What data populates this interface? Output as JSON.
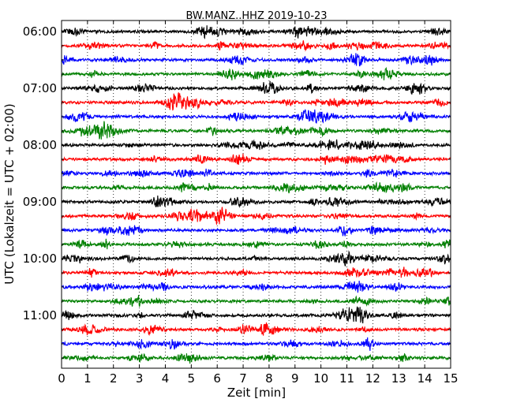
{
  "chart_data": {
    "type": "line",
    "title": "BW.MANZ..HHZ 2019-10-23",
    "xlabel": "Zeit  [min]",
    "ylabel": "UTC (Lokalzeit = UTC + 02:00)",
    "xlim": [
      0,
      15
    ],
    "x_ticks": [
      "0",
      "1",
      "2",
      "3",
      "4",
      "5",
      "6",
      "7",
      "8",
      "9",
      "10",
      "11",
      "12",
      "13",
      "14",
      "15"
    ],
    "y_tick_labels": [
      "06:00",
      "07:00",
      "08:00",
      "09:00",
      "10:00",
      "11:00"
    ],
    "grid": "vertical dotted",
    "colors": [
      "#000000",
      "#ff0000",
      "#0000ff",
      "#008000"
    ],
    "traces": [
      {
        "start": "06:00",
        "color": "#000000"
      },
      {
        "start": "06:15",
        "color": "#ff0000"
      },
      {
        "start": "06:30",
        "color": "#0000ff"
      },
      {
        "start": "06:45",
        "color": "#008000"
      },
      {
        "start": "07:00",
        "color": "#000000"
      },
      {
        "start": "07:15",
        "color": "#ff0000"
      },
      {
        "start": "07:30",
        "color": "#0000ff"
      },
      {
        "start": "07:45",
        "color": "#008000"
      },
      {
        "start": "08:00",
        "color": "#000000"
      },
      {
        "start": "08:15",
        "color": "#ff0000"
      },
      {
        "start": "08:30",
        "color": "#0000ff"
      },
      {
        "start": "08:45",
        "color": "#008000"
      },
      {
        "start": "09:00",
        "color": "#000000"
      },
      {
        "start": "09:15",
        "color": "#ff0000"
      },
      {
        "start": "09:30",
        "color": "#0000ff"
      },
      {
        "start": "09:45",
        "color": "#008000"
      },
      {
        "start": "10:00",
        "color": "#000000"
      },
      {
        "start": "10:15",
        "color": "#ff0000"
      },
      {
        "start": "10:30",
        "color": "#0000ff"
      },
      {
        "start": "10:45",
        "color": "#008000"
      },
      {
        "start": "11:00",
        "color": "#000000"
      },
      {
        "start": "11:15",
        "color": "#ff0000"
      },
      {
        "start": "11:30",
        "color": "#0000ff"
      },
      {
        "start": "11:45",
        "color": "#008000"
      }
    ]
  }
}
